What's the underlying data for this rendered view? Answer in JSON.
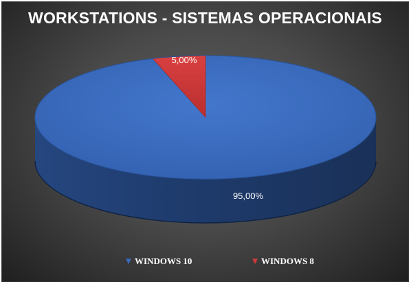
{
  "chart_data": {
    "type": "pie",
    "style": "3d",
    "title": "WORKSTATIONS - SISTEMAS OPERACIONAIS",
    "categories": [
      "WINDOWS 10",
      "WINDOWS 8"
    ],
    "values": [
      95.0,
      5.0
    ],
    "data_labels": [
      "95,00%",
      "5,00%"
    ],
    "colors": [
      "#3b6bbf",
      "#d03a3a"
    ],
    "legend_position": "bottom",
    "background": "#4a4a4a"
  }
}
